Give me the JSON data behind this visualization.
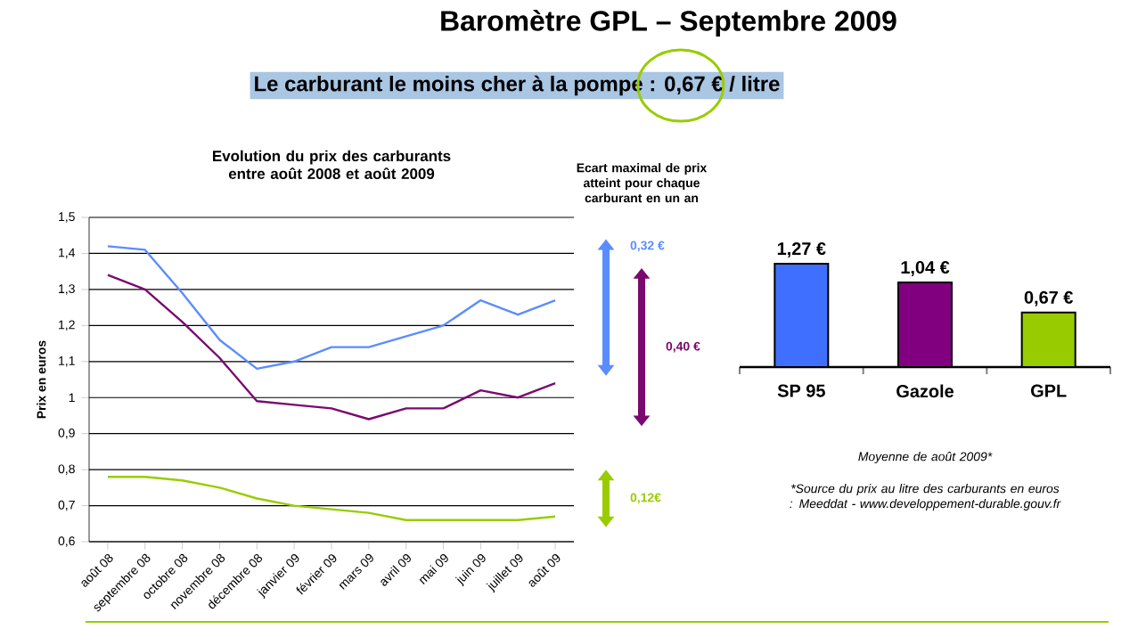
{
  "chart_data": [
    {
      "type": "other",
      "title": "Baromètre GPL – Septembre 2009",
      "subtitle": "Le carburant le moins cher à la pompe : 0,67 € / litre"
    },
    {
      "type": "line",
      "title": "Evolution du prix des carburants entre août 2008 et août 2009",
      "ylabel": "Prix en euros",
      "categories": [
        "août 08",
        "septembre 08",
        "octobre 08",
        "novembre 08",
        "décembre 08",
        "janvier 09",
        "février 09",
        "mars 09",
        "avril 09",
        "mai 09",
        "juin 09",
        "juillet 09",
        "août 09"
      ],
      "series": [
        {
          "color": "#5b8cff",
          "values": [
            1.42,
            1.41,
            1.29,
            1.16,
            1.08,
            1.1,
            1.14,
            1.14,
            1.17,
            1.2,
            1.27,
            1.23,
            1.27
          ]
        },
        {
          "color": "#7a0a6e",
          "values": [
            1.34,
            1.3,
            1.21,
            1.11,
            0.99,
            0.98,
            0.97,
            0.94,
            0.97,
            0.97,
            1.02,
            1.0,
            1.04
          ]
        },
        {
          "color": "#99cc00",
          "values": [
            0.78,
            0.78,
            0.77,
            0.75,
            0.72,
            0.7,
            0.69,
            0.68,
            0.66,
            0.66,
            0.66,
            0.66,
            0.67
          ]
        }
      ],
      "ylim": [
        0.6,
        1.5
      ],
      "yticks": [
        {
          "value": 0.6,
          "label": "0,6"
        },
        {
          "value": 0.7,
          "label": "0,7"
        },
        {
          "value": 0.8,
          "label": "0,8"
        },
        {
          "value": 0.9,
          "label": "0,9"
        },
        1,
        {
          "value": 1.1,
          "label": "1,1"
        },
        {
          "value": 1.2,
          "label": "1,2"
        },
        {
          "value": 1.3,
          "label": "1,3"
        },
        {
          "value": 1.4,
          "label": "1,4"
        },
        {
          "value": 1.5,
          "label": "1,5"
        }
      ],
      "grid": "y",
      "marker": "none",
      "line_style": "solid",
      "annotations": [
        "Ecart maximal de prix atteint pour chaque carburant en un an",
        "0,32 €",
        "0,40 €",
        "0,12€"
      ]
    },
    {
      "type": "bar",
      "categories": [
        "SP 95",
        "Gazole",
        "GPL"
      ],
      "values": [
        1.27,
        1.04,
        0.67
      ],
      "colors": [
        "#3f6fff",
        "#800080",
        "#99cc00"
      ],
      "value_labels": [
        "1,27 €",
        "1,04 €",
        "0,67 €"
      ],
      "tick_labels": "x",
      "annotations": [
        "Moyenne de août 2009*",
        "*Source du prix au litre des carburants en euros : Meeddat - www.developpement-durable.gouv.fr"
      ]
    }
  ]
}
